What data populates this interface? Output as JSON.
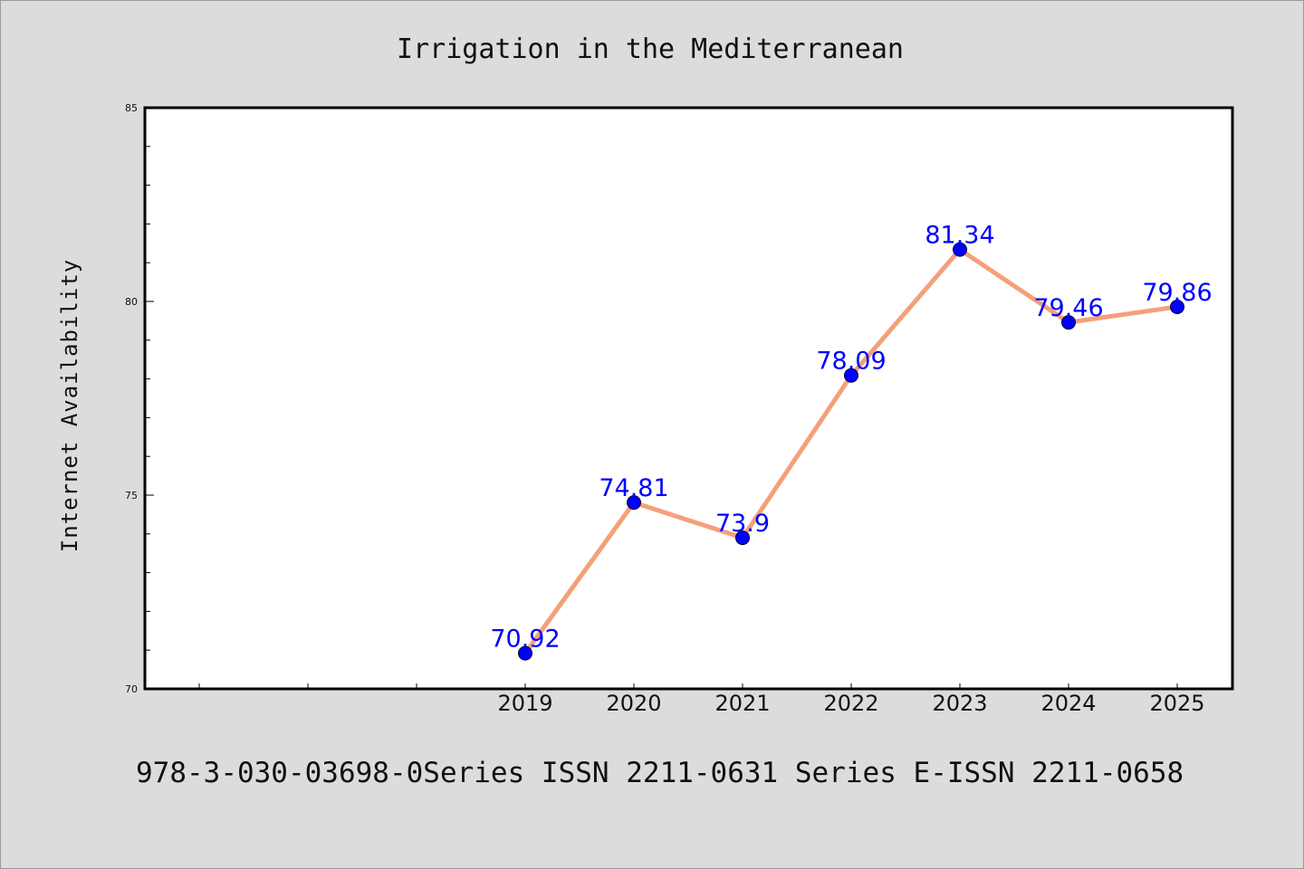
{
  "footer": {
    "text": "978-3-030-03698-0Series ISSN 2211-0631 Series E-ISSN 2211-0658"
  },
  "chart_data": {
    "type": "line",
    "title": "Irrigation in the Mediterranean",
    "xlabel": "",
    "ylabel": "Internet Availability",
    "categories": [
      "2019",
      "2020",
      "2021",
      "2022",
      "2023",
      "2024",
      "2025"
    ],
    "series": [
      {
        "values": [
          70.92,
          74.81,
          73.9,
          78.09,
          81.34,
          79.46,
          79.86
        ],
        "line_color": "#f4a07a",
        "marker_color": "#0000ff"
      }
    ],
    "data_labels": [
      "70.92",
      "74.81",
      "73.9",
      "78.09",
      "81.34",
      "79.46",
      "79.86"
    ],
    "ylim": [
      70,
      85
    ],
    "yticks": [
      "70",
      "75",
      "80",
      "85"
    ],
    "grid": false,
    "legend": "none"
  }
}
